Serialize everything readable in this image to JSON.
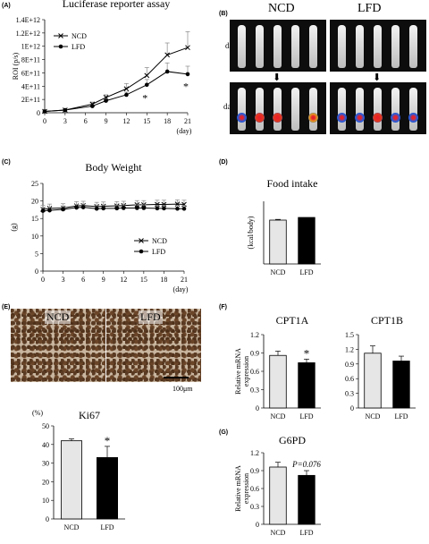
{
  "panels": {
    "A": "(A)",
    "B": "(B)",
    "C": "(C)",
    "D": "(D)",
    "E": "(E)",
    "F": "(F)",
    "G": "(G)"
  },
  "imaging": {
    "groups": [
      "NCD",
      "LFD"
    ],
    "days": [
      "day3",
      "day21"
    ],
    "arrow": "⬇"
  },
  "histology": {
    "groups": [
      "NCD",
      "LFD"
    ],
    "scale_label": "100μm"
  },
  "chart_data": [
    {
      "id": "A",
      "type": "line",
      "title": "Luciferase reporter assay",
      "ylabel": "ROI (p/s)",
      "xlabel": "(day)",
      "x": [
        0,
        3,
        7,
        9,
        12,
        15,
        18,
        21
      ],
      "xticks": [
        0,
        3,
        6,
        9,
        12,
        15,
        18,
        21
      ],
      "yticks": [
        "0",
        "2E+11",
        "4E+11",
        "6E+11",
        "8E+11",
        "1E+12",
        "1.2E+12",
        "1.4E+12"
      ],
      "ylim": [
        0,
        1400000000000.0
      ],
      "series": [
        {
          "name": "NCD",
          "marker": "x",
          "values": [
            20000000000.0,
            40000000000.0,
            130000000000.0,
            230000000000.0,
            360000000000.0,
            560000000000.0,
            870000000000.0,
            980000000000.0
          ],
          "err": [
            10000000000.0,
            10000000000.0,
            30000000000.0,
            40000000000.0,
            80000000000.0,
            120000000000.0,
            180000000000.0,
            240000000000.0
          ]
        },
        {
          "name": "LFD",
          "marker": "o",
          "values": [
            20000000000.0,
            40000000000.0,
            100000000000.0,
            180000000000.0,
            270000000000.0,
            420000000000.0,
            620000000000.0,
            580000000000.0
          ],
          "err": [
            10000000000.0,
            10000000000.0,
            20000000000.0,
            30000000000.0,
            40000000000.0,
            80000000000.0,
            130000000000.0,
            120000000000.0
          ]
        }
      ],
      "annotations": [
        {
          "x": 15,
          "y": 220000000000.0,
          "text": "*"
        },
        {
          "x": 21,
          "y": 400000000000.0,
          "text": "*"
        }
      ],
      "legend": "top-left"
    },
    {
      "id": "C",
      "type": "line",
      "title": "Body Weight",
      "ylabel": "(g)",
      "xlabel": "(day)",
      "x": [
        0,
        1,
        3,
        5,
        6,
        8,
        9,
        11,
        12,
        14,
        15,
        17,
        18,
        20,
        21
      ],
      "xticks": [
        0,
        3,
        6,
        9,
        12,
        15,
        18,
        21
      ],
      "yticks": [
        "0",
        "5",
        "10",
        "15",
        "20",
        "25"
      ],
      "ylim": [
        0,
        25
      ],
      "series": [
        {
          "name": "NCD",
          "marker": "x",
          "values": [
            17.6,
            17.9,
            18.0,
            18.6,
            18.7,
            18.4,
            18.5,
            18.6,
            18.7,
            18.9,
            18.9,
            19.0,
            19.0,
            19.1,
            19.0
          ],
          "err": [
            1.2,
            1.2,
            1.2,
            1.2,
            1.2,
            1.2,
            1.2,
            1.2,
            1.2,
            1.2,
            1.2,
            1.2,
            1.2,
            1.2,
            1.2
          ]
        },
        {
          "name": "LFD",
          "marker": "o",
          "values": [
            17.2,
            17.3,
            17.6,
            18.1,
            18.2,
            17.8,
            17.9,
            17.9,
            18.0,
            18.0,
            18.0,
            17.9,
            17.9,
            17.8,
            17.8
          ],
          "err": [
            0.9,
            0.9,
            0.9,
            0.9,
            0.9,
            0.9,
            0.9,
            0.9,
            0.9,
            0.9,
            0.9,
            0.9,
            0.9,
            0.9,
            0.9
          ]
        }
      ],
      "legend": "bottom-right"
    },
    {
      "id": "D",
      "type": "bar",
      "title": "Food intake",
      "ylabel": "(kcal/body)",
      "categories": [
        "NCD",
        "LFD"
      ],
      "values": [
        182,
        193
      ],
      "err": [
        3,
        0
      ],
      "ylim": [
        0,
        260
      ],
      "colors": [
        "#e6e6e6",
        "#000000"
      ]
    },
    {
      "id": "E",
      "type": "bar",
      "title": "Ki67",
      "ylabel": "(%)",
      "categories": [
        "NCD",
        "LFD"
      ],
      "values": [
        42,
        33
      ],
      "err": [
        1,
        6
      ],
      "yticks": [
        "0",
        "10",
        "20",
        "30",
        "40",
        "50"
      ],
      "ylim": [
        0,
        50
      ],
      "colors": [
        "#e6e6e6",
        "#000000"
      ],
      "annotations": [
        {
          "index": 1,
          "text": "*"
        }
      ]
    },
    {
      "id": "F1",
      "type": "bar",
      "title": "CPT1A",
      "ylabel": "Relative mRNA expression",
      "categories": [
        "NCD",
        "LFD"
      ],
      "values": [
        0.86,
        0.74
      ],
      "err": [
        0.07,
        0.06
      ],
      "yticks": [
        "0",
        "0.3",
        "0.6",
        "0.9",
        "1.2"
      ],
      "ylim": [
        0,
        1.2
      ],
      "colors": [
        "#e6e6e6",
        "#000000"
      ],
      "annotations": [
        {
          "index": 1,
          "text": "*"
        }
      ]
    },
    {
      "id": "F2",
      "type": "bar",
      "title": "CPT1B",
      "ylabel": "",
      "categories": [
        "NCD",
        "LFD"
      ],
      "values": [
        1.12,
        0.96
      ],
      "err": [
        0.15,
        0.1
      ],
      "yticks": [
        "0",
        "0.3",
        "0.6",
        "0.9",
        "1.2",
        "1.5"
      ],
      "ylim": [
        0,
        1.5
      ],
      "colors": [
        "#e6e6e6",
        "#000000"
      ]
    },
    {
      "id": "G",
      "type": "bar",
      "title": "G6PD",
      "ylabel": "Relative mRNA expression",
      "categories": [
        "NCD",
        "LFD"
      ],
      "values": [
        0.96,
        0.82
      ],
      "err": [
        0.08,
        0.08
      ],
      "yticks": [
        "0",
        "0.3",
        "0.6",
        "0.9",
        "1.2"
      ],
      "ylim": [
        0,
        1.2
      ],
      "colors": [
        "#e6e6e6",
        "#000000"
      ],
      "annotations": [
        {
          "index": 1,
          "text": "P=0.076"
        }
      ]
    }
  ]
}
